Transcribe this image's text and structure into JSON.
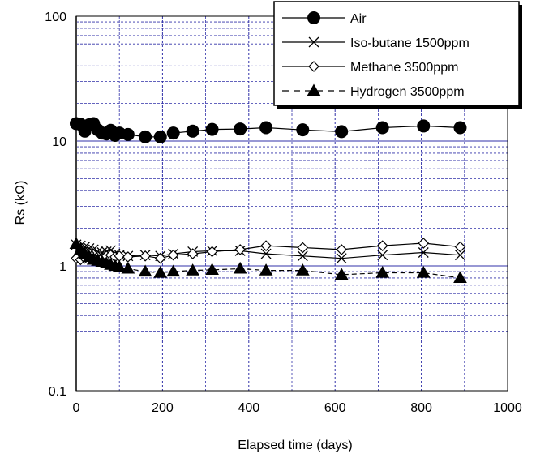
{
  "chart_data": {
    "type": "scatter",
    "xlabel": "Elapsed time (days)",
    "ylabel": "Rs (kΩ)",
    "xlim": [
      0,
      1000
    ],
    "ylim": [
      0.1,
      100
    ],
    "yscale": "log",
    "x_ticks": [
      "0",
      "200",
      "400",
      "600",
      "800",
      "1000"
    ],
    "y_ticks": [
      "0.1",
      "1",
      "10",
      "100"
    ],
    "grid": true,
    "legend_position": "top-right",
    "series": [
      {
        "name": "Air",
        "marker": "filled-circle",
        "line": "solid",
        "x": [
          0,
          10,
          20,
          30,
          40,
          50,
          60,
          70,
          80,
          90,
          100,
          120,
          160,
          195,
          225,
          270,
          315,
          380,
          440,
          525,
          615,
          710,
          805,
          890
        ],
        "y": [
          13.8,
          13.6,
          12.0,
          13.5,
          13.8,
          12.3,
          11.6,
          11.4,
          12.2,
          11.1,
          11.6,
          11.3,
          10.8,
          10.8,
          11.6,
          12.0,
          12.4,
          12.5,
          12.8,
          12.3,
          11.9,
          12.8,
          13.2,
          12.8
        ]
      },
      {
        "name": "Iso-butane 1500ppm",
        "marker": "x",
        "line": "solid",
        "x": [
          0,
          10,
          20,
          30,
          40,
          50,
          60,
          70,
          80,
          90,
          100,
          120,
          160,
          195,
          225,
          270,
          315,
          380,
          440,
          525,
          615,
          710,
          805,
          890
        ],
        "y": [
          1.48,
          1.45,
          1.42,
          1.38,
          1.35,
          1.3,
          1.28,
          1.3,
          1.33,
          1.25,
          1.22,
          1.2,
          1.22,
          1.2,
          1.25,
          1.3,
          1.32,
          1.32,
          1.25,
          1.2,
          1.15,
          1.22,
          1.28,
          1.22
        ]
      },
      {
        "name": "Methane 3500ppm",
        "marker": "open-diamond",
        "line": "solid",
        "x": [
          0,
          10,
          20,
          30,
          40,
          50,
          60,
          70,
          80,
          90,
          100,
          120,
          160,
          195,
          225,
          270,
          315,
          380,
          440,
          525,
          615,
          710,
          805,
          890
        ],
        "y": [
          1.15,
          1.12,
          1.15,
          1.18,
          1.15,
          1.12,
          1.15,
          1.2,
          1.22,
          1.18,
          1.2,
          1.18,
          1.2,
          1.15,
          1.22,
          1.25,
          1.3,
          1.35,
          1.45,
          1.4,
          1.35,
          1.45,
          1.52,
          1.42
        ]
      },
      {
        "name": "Hydrogen 3500ppm",
        "marker": "filled-triangle",
        "line": "dashed",
        "x": [
          0,
          10,
          20,
          30,
          40,
          50,
          60,
          70,
          80,
          90,
          100,
          120,
          160,
          195,
          225,
          270,
          315,
          380,
          440,
          525,
          615,
          710,
          805,
          890
        ],
        "y": [
          1.5,
          1.35,
          1.25,
          1.18,
          1.12,
          1.1,
          1.08,
          1.05,
          1.02,
          1.0,
          0.98,
          0.95,
          0.9,
          0.88,
          0.9,
          0.92,
          0.93,
          0.95,
          0.92,
          0.92,
          0.85,
          0.88,
          0.88,
          0.8
        ]
      }
    ]
  },
  "colors": {
    "grid": "#3030a8",
    "plot_border": "#000000",
    "axis_line": "#808080",
    "series": "#000000"
  }
}
